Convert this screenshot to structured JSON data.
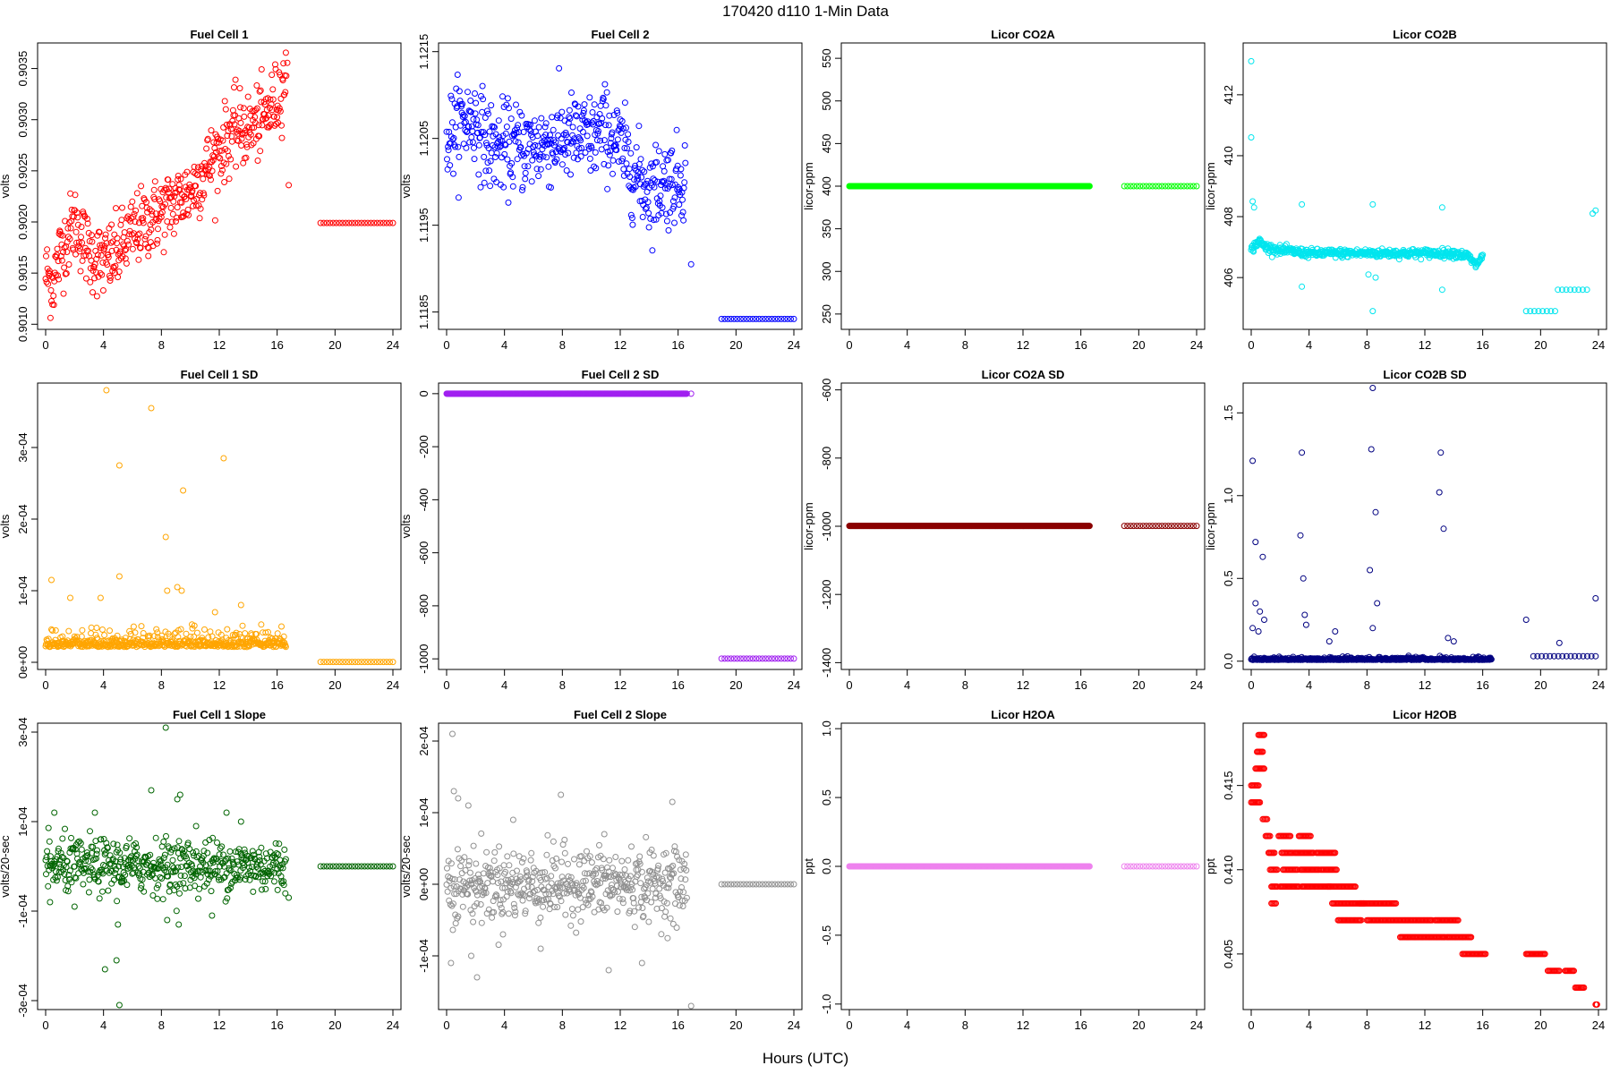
{
  "figure": {
    "title": "170420    d110    1-Min Data",
    "xlabel": "Hours (UTC)"
  },
  "chart_data": [
    {
      "id": "fc1",
      "type": "scatter",
      "title": "Fuel Cell 1",
      "ylabel": "volts",
      "color": "#ff0000",
      "xlim": [
        0,
        24
      ],
      "ylim": [
        0.90095,
        0.90375
      ],
      "yticks": [
        0.901,
        0.9015,
        0.902,
        0.9025,
        0.903,
        0.9035
      ],
      "yticklabels": [
        "0.9010",
        "0.9015",
        "0.9020",
        "0.9025",
        "0.9030",
        "0.9035"
      ],
      "xticks": [
        0,
        4,
        8,
        12,
        16,
        20,
        24
      ],
      "trend": [
        [
          0,
          0.9015
        ],
        [
          0.5,
          0.9014
        ],
        [
          1,
          0.9017
        ],
        [
          2,
          0.902
        ],
        [
          3,
          0.9017
        ],
        [
          4,
          0.9016
        ],
        [
          5,
          0.9017
        ],
        [
          6,
          0.9019
        ],
        [
          7,
          0.902
        ],
        [
          8,
          0.9021
        ],
        [
          9,
          0.9022
        ],
        [
          10,
          0.9023
        ],
        [
          11,
          0.9025
        ],
        [
          12,
          0.9027
        ],
        [
          13,
          0.9029
        ],
        [
          14,
          0.9029
        ],
        [
          15,
          0.903
        ],
        [
          16,
          0.9032
        ],
        [
          16.7,
          0.9035
        ]
      ],
      "noise": 0.00018,
      "n": 500,
      "segments": [
        {
          "x0": 19,
          "x1": 24,
          "y": 0.90199,
          "n": 24
        }
      ],
      "extra": [
        [
          16.8,
          0.90236
        ]
      ]
    },
    {
      "id": "fc2",
      "type": "scatter",
      "title": "Fuel Cell 2",
      "ylabel": "volts",
      "color": "#0000ff",
      "xlim": [
        0,
        24
      ],
      "ylim": [
        1.1183,
        1.1216
      ],
      "yticks": [
        1.1185,
        1.1195,
        1.1205,
        1.1215
      ],
      "yticklabels": [
        "1.1185",
        "1.1195",
        "1.1205",
        "1.1215"
      ],
      "xticks": [
        0,
        4,
        8,
        12,
        16,
        20,
        24
      ],
      "trend": [
        [
          0,
          1.1205
        ],
        [
          1,
          1.1207
        ],
        [
          2,
          1.1207
        ],
        [
          3,
          1.1204
        ],
        [
          4,
          1.1204
        ],
        [
          6,
          1.1204
        ],
        [
          8,
          1.1205
        ],
        [
          10,
          1.1205
        ],
        [
          11,
          1.1206
        ],
        [
          12,
          1.1204
        ],
        [
          13,
          1.1201
        ],
        [
          14,
          1.1199
        ],
        [
          15,
          1.12
        ],
        [
          16,
          1.12
        ],
        [
          16.5,
          1.1201
        ]
      ],
      "noise": 0.00025,
      "n": 500,
      "segments": [
        {
          "x0": 19,
          "x1": 24,
          "y": 1.11842,
          "n": 24
        }
      ],
      "extra": [
        [
          16.9,
          1.11905
        ]
      ]
    },
    {
      "id": "co2a",
      "type": "scatter",
      "title": "Licor CO2A",
      "ylabel": "licor-ppm",
      "color": "#00ff00",
      "xlim": [
        0,
        24
      ],
      "ylim": [
        232,
        568
      ],
      "yticks": [
        250,
        300,
        350,
        400,
        450,
        500,
        550
      ],
      "yticklabels": [
        "250",
        "300",
        "350",
        "400",
        "450",
        "500",
        "550"
      ],
      "xticks": [
        0,
        4,
        8,
        12,
        16,
        20,
        24
      ],
      "trend": [
        [
          0,
          400
        ],
        [
          16.6,
          400
        ]
      ],
      "noise": 0,
      "n": 500,
      "segments": [
        {
          "x0": 19,
          "x1": 24,
          "y": 400,
          "n": 24
        }
      ],
      "extra": []
    },
    {
      "id": "co2b",
      "type": "scatter",
      "title": "Licor CO2B",
      "ylabel": "licor-ppm",
      "color": "#00e5ee",
      "xlim": [
        0,
        24
      ],
      "ylim": [
        404.3,
        413.7
      ],
      "yticks": [
        406,
        408,
        410,
        412
      ],
      "yticklabels": [
        "406",
        "408",
        "410",
        "412"
      ],
      "xticks": [
        0,
        4,
        8,
        12,
        16,
        20,
        24
      ],
      "trend": [
        [
          0,
          406.9
        ],
        [
          0.5,
          407.2
        ],
        [
          1,
          407.0
        ],
        [
          2,
          406.9
        ],
        [
          4,
          406.8
        ],
        [
          8,
          406.8
        ],
        [
          12,
          406.8
        ],
        [
          14,
          406.8
        ],
        [
          15,
          406.7
        ],
        [
          15.5,
          406.4
        ],
        [
          16,
          406.7
        ]
      ],
      "noise": 0.07,
      "n": 500,
      "segments": [
        {
          "x0": 19,
          "x1": 21,
          "y": 404.9,
          "n": 8
        },
        {
          "x0": 21.2,
          "x1": 23.2,
          "y": 405.6,
          "n": 8
        }
      ],
      "extra": [
        [
          0,
          413.1
        ],
        [
          0,
          410.6
        ],
        [
          0.1,
          408.5
        ],
        [
          0.2,
          408.3
        ],
        [
          3.5,
          408.4
        ],
        [
          3.5,
          405.7
        ],
        [
          8.4,
          408.4
        ],
        [
          8.4,
          404.9
        ],
        [
          8.1,
          406.1
        ],
        [
          8.6,
          406.0
        ],
        [
          13.2,
          408.3
        ],
        [
          13.2,
          405.6
        ],
        [
          23.6,
          408.1
        ],
        [
          23.8,
          408.2
        ]
      ]
    },
    {
      "id": "fc1sd",
      "type": "scatter",
      "title": "Fuel Cell 1 SD",
      "ylabel": "volts",
      "color": "#ffa500",
      "xlim": [
        0,
        24
      ],
      "ylim": [
        -1e-05,
        0.00039
      ],
      "yticks": [
        0,
        0.0001,
        0.0002,
        0.0003
      ],
      "yticklabels": [
        "0e+00",
        "1e-04",
        "2e-04",
        "3e-04"
      ],
      "xticks": [
        0,
        4,
        8,
        12,
        16,
        20,
        24
      ],
      "trend": [
        [
          0,
          2.5e-05
        ],
        [
          16.6,
          2.5e-05
        ]
      ],
      "noise": 1.2e-05,
      "n": 500,
      "segments": [
        {
          "x0": 19,
          "x1": 24,
          "y": 5e-07,
          "n": 24
        }
      ],
      "extra": [
        [
          4.2,
          0.00038
        ],
        [
          7.3,
          0.000355
        ],
        [
          5.1,
          0.000275
        ],
        [
          9.5,
          0.00024
        ],
        [
          12.3,
          0.000285
        ],
        [
          8.3,
          0.000175
        ],
        [
          0.4,
          0.000115
        ],
        [
          5.1,
          0.00012
        ],
        [
          9.1,
          0.000105
        ],
        [
          3.8,
          9e-05
        ],
        [
          13.5,
          8e-05
        ],
        [
          8.4,
          0.0001
        ],
        [
          9.4,
          0.0001
        ],
        [
          1.7,
          9e-05
        ],
        [
          11.7,
          7e-05
        ],
        [
          16.3,
          5e-05
        ]
      ]
    },
    {
      "id": "fc2sd",
      "type": "scatter",
      "title": "Fuel Cell 2 SD",
      "ylabel": "volts",
      "color": "#a020f0",
      "xlim": [
        0,
        24
      ],
      "ylim": [
        -1040,
        40
      ],
      "yticks": [
        -1000,
        -800,
        -600,
        -400,
        -200,
        0
      ],
      "yticklabels": [
        "-1000",
        "-800",
        "-600",
        "-400",
        "-200",
        "0"
      ],
      "xticks": [
        0,
        4,
        8,
        12,
        16,
        20,
        24
      ],
      "trend": [
        [
          0,
          0
        ],
        [
          16.6,
          0
        ]
      ],
      "noise": 0,
      "n": 500,
      "segments": [
        {
          "x0": 19,
          "x1": 24,
          "y": -999,
          "n": 24
        }
      ],
      "extra": [
        [
          16.9,
          0
        ]
      ]
    },
    {
      "id": "co2asd",
      "type": "scatter",
      "title": "Licor CO2A SD",
      "ylabel": "licor-ppm",
      "color": "#8b0000",
      "xlim": [
        0,
        24
      ],
      "ylim": [
        -1420,
        -580
      ],
      "yticks": [
        -1400,
        -1200,
        -1000,
        -800,
        -600
      ],
      "yticklabels": [
        "-1400",
        "-1200",
        "-1000",
        "-800",
        "-600"
      ],
      "xticks": [
        0,
        4,
        8,
        12,
        16,
        20,
        24
      ],
      "trend": [
        [
          0,
          -999
        ],
        [
          16.6,
          -999
        ]
      ],
      "noise": 0,
      "n": 500,
      "segments": [
        {
          "x0": 19,
          "x1": 24,
          "y": -999,
          "n": 24
        }
      ],
      "extra": []
    },
    {
      "id": "co2bsd",
      "type": "scatter",
      "title": "Licor CO2B SD",
      "ylabel": "licor-ppm",
      "color": "#000080",
      "xlim": [
        0,
        24
      ],
      "ylim": [
        -0.05,
        1.68
      ],
      "yticks": [
        0,
        0.5,
        1.0,
        1.5
      ],
      "yticklabels": [
        "0.0",
        "0.5",
        "1.0",
        "1.5"
      ],
      "xticks": [
        0,
        4,
        8,
        12,
        16,
        20,
        24
      ],
      "trend": [
        [
          0,
          0.01
        ],
        [
          16.6,
          0.01
        ]
      ],
      "noise": 0.008,
      "n": 500,
      "segments": [
        {
          "x0": 19.5,
          "x1": 23.8,
          "y": 0.03,
          "n": 16
        }
      ],
      "extra": [
        [
          0.1,
          1.21
        ],
        [
          0.3,
          0.72
        ],
        [
          0.8,
          0.63
        ],
        [
          0.3,
          0.35
        ],
        [
          0.6,
          0.3
        ],
        [
          0.9,
          0.25
        ],
        [
          3.5,
          1.26
        ],
        [
          3.4,
          0.76
        ],
        [
          3.6,
          0.5
        ],
        [
          3.7,
          0.28
        ],
        [
          3.8,
          0.22
        ],
        [
          8.4,
          1.65
        ],
        [
          8.3,
          1.28
        ],
        [
          8.6,
          0.9
        ],
        [
          8.2,
          0.55
        ],
        [
          8.7,
          0.35
        ],
        [
          13.1,
          1.26
        ],
        [
          13.0,
          1.02
        ],
        [
          13.3,
          0.8
        ],
        [
          13.6,
          0.14
        ],
        [
          14.0,
          0.12
        ],
        [
          19,
          0.25
        ],
        [
          21.3,
          0.11
        ],
        [
          23.8,
          0.38
        ],
        [
          0.1,
          0.2
        ],
        [
          0.5,
          0.18
        ],
        [
          5.4,
          0.12
        ],
        [
          5.8,
          0.18
        ],
        [
          8.4,
          0.2
        ]
      ]
    },
    {
      "id": "fc1slope",
      "type": "scatter",
      "title": "Fuel Cell 1 Slope",
      "ylabel": "volts/20-sec",
      "color": "#006400",
      "xlim": [
        0,
        24
      ],
      "ylim": [
        -0.00032,
        0.00032
      ],
      "yticks": [
        -0.0003,
        -0.0001,
        0.0001,
        0.0003
      ],
      "yticklabels": [
        "-3e-04",
        "-1e-04",
        "1e-04",
        "3e-04"
      ],
      "xticks": [
        0,
        4,
        8,
        12,
        16,
        20,
        24
      ],
      "trend": [
        [
          0,
          0
        ],
        [
          16.6,
          0
        ]
      ],
      "noise": 3e-05,
      "n": 500,
      "segments": [
        {
          "x0": 19,
          "x1": 24,
          "y": 0,
          "n": 24
        }
      ],
      "extra": [
        [
          8.3,
          0.00031
        ],
        [
          7.3,
          0.00017
        ],
        [
          9.1,
          0.00015
        ],
        [
          9.3,
          0.00016
        ],
        [
          4.1,
          -0.00023
        ],
        [
          4.9,
          -0.00021
        ],
        [
          5.1,
          -0.00031
        ],
        [
          5.0,
          -0.00013
        ],
        [
          8.4,
          -0.00012
        ],
        [
          9.2,
          -0.00013
        ],
        [
          11.5,
          -0.00011
        ],
        [
          12.5,
          0.00012
        ],
        [
          16.8,
          -7e-05
        ],
        [
          3.4,
          0.00012
        ],
        [
          0.6,
          0.00012
        ],
        [
          13.5,
          0.0001
        ],
        [
          0.3,
          -8e-05
        ],
        [
          2.0,
          -9e-05
        ],
        [
          10.4,
          9e-05
        ]
      ]
    },
    {
      "id": "fc2slope",
      "type": "scatter",
      "title": "Fuel Cell 2 Slope",
      "ylabel": "volts/20-sec",
      "color": "#909090",
      "xlim": [
        0,
        24
      ],
      "ylim": [
        -0.000175,
        0.000225
      ],
      "yticks": [
        -0.0001,
        0,
        0.0001,
        0.0002
      ],
      "yticklabels": [
        "-1e-04",
        "0e+00",
        "1e-04",
        "2e-04"
      ],
      "xticks": [
        0,
        4,
        8,
        12,
        16,
        20,
        24
      ],
      "trend": [
        [
          0,
          0
        ],
        [
          16.6,
          0
        ]
      ],
      "noise": 2.5e-05,
      "n": 500,
      "segments": [
        {
          "x0": 19,
          "x1": 24,
          "y": 0,
          "n": 24
        }
      ],
      "extra": [
        [
          0.4,
          0.00021
        ],
        [
          0.5,
          0.00013
        ],
        [
          0.8,
          0.00012
        ],
        [
          1.5,
          0.00011
        ],
        [
          7.9,
          0.000125
        ],
        [
          15.6,
          0.000115
        ],
        [
          16.9,
          -0.00017
        ],
        [
          0.3,
          -0.00011
        ],
        [
          2.1,
          -0.00013
        ],
        [
          1.7,
          -0.0001
        ],
        [
          11.2,
          -0.00012
        ],
        [
          13.5,
          -0.00011
        ],
        [
          6.5,
          -9e-05
        ],
        [
          4.6,
          9e-05
        ],
        [
          10.9,
          7e-05
        ],
        [
          3.9,
          -7e-05
        ]
      ]
    },
    {
      "id": "h2oa",
      "type": "scatter",
      "title": "Licor H2OA",
      "ylabel": "ppt",
      "color": "#ee82ee",
      "xlim": [
        0,
        24
      ],
      "ylim": [
        -1.04,
        1.04
      ],
      "yticks": [
        -1.0,
        -0.5,
        0.0,
        0.5,
        1.0
      ],
      "yticklabels": [
        "-1.0",
        "-0.5",
        "0.0",
        "0.5",
        "1.0"
      ],
      "xticks": [
        0,
        4,
        8,
        12,
        16,
        20,
        24
      ],
      "trend": [
        [
          0,
          0
        ],
        [
          16.6,
          0
        ]
      ],
      "noise": 0,
      "n": 500,
      "segments": [
        {
          "x0": 19,
          "x1": 24,
          "y": 0,
          "n": 24
        }
      ],
      "extra": []
    },
    {
      "id": "h2ob",
      "type": "scatter",
      "title": "Licor H2OB",
      "ylabel": "ppt",
      "color": "#ff0000",
      "xlim": [
        0,
        24
      ],
      "ylim": [
        0.4017,
        0.4187
      ],
      "yticks": [
        0.405,
        0.41,
        0.415
      ],
      "yticklabels": [
        "0.405",
        "0.410",
        "0.415"
      ],
      "xticks": [
        0,
        4,
        8,
        12,
        16,
        20,
        24
      ],
      "steps": [
        [
          0,
          0.5,
          0.415
        ],
        [
          0,
          0.6,
          0.414
        ],
        [
          0.3,
          0.9,
          0.416
        ],
        [
          0.4,
          0.8,
          0.417
        ],
        [
          0.5,
          0.9,
          0.418
        ],
        [
          0.8,
          1.1,
          0.413
        ],
        [
          1.0,
          1.3,
          0.412
        ],
        [
          1.2,
          1.6,
          0.411
        ],
        [
          1.3,
          1.8,
          0.41
        ],
        [
          1.4,
          1.8,
          0.409
        ],
        [
          1.4,
          1.7,
          0.408
        ],
        [
          1.9,
          2.7,
          0.412
        ],
        [
          2.1,
          2.9,
          0.411
        ],
        [
          2.2,
          3.2,
          0.41
        ],
        [
          2.0,
          3.3,
          0.409
        ],
        [
          3.3,
          4.1,
          0.412
        ],
        [
          3.0,
          4.3,
          0.411
        ],
        [
          3.4,
          4.7,
          0.41
        ],
        [
          3.5,
          5.5,
          0.409
        ],
        [
          4.5,
          5.8,
          0.411
        ],
        [
          4.8,
          5.9,
          0.41
        ],
        [
          5.3,
          7.2,
          0.409
        ],
        [
          5.6,
          7.8,
          0.408
        ],
        [
          6.0,
          7.6,
          0.407
        ],
        [
          7.5,
          10.0,
          0.408
        ],
        [
          8.0,
          12.5,
          0.407
        ],
        [
          10.3,
          13.4,
          0.406
        ],
        [
          12.7,
          14.3,
          0.407
        ],
        [
          13.5,
          15.2,
          0.406
        ],
        [
          14.6,
          16.2,
          0.405
        ],
        [
          19,
          20.3,
          0.405
        ],
        [
          20.5,
          21.3,
          0.404
        ],
        [
          21.7,
          22.3,
          0.404
        ],
        [
          22.4,
          23.0,
          0.403
        ],
        [
          23.8,
          23.9,
          0.402
        ]
      ],
      "segments": [],
      "extra": []
    }
  ]
}
